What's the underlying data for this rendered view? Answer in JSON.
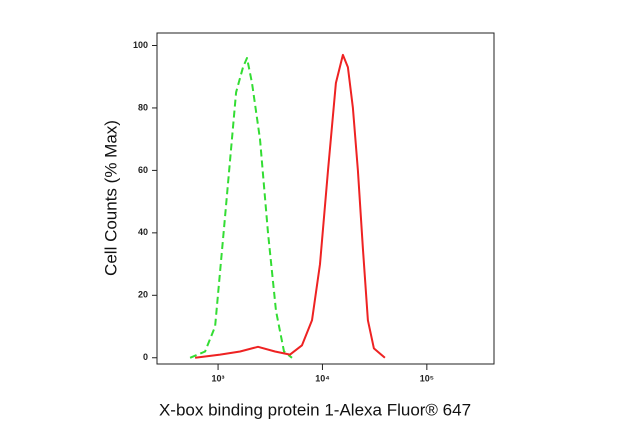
{
  "chart_data": {
    "type": "line",
    "xlabel": "X-box binding protein 1-Alexa Fluor® 647",
    "ylabel": "Cell Counts (% Max)",
    "xscale": "log",
    "xlim": [
      260,
      440000
    ],
    "ylim": [
      -2,
      104
    ],
    "xticks": [
      {
        "value": 1000,
        "label": "10³"
      },
      {
        "value": 10000,
        "label": "10⁴"
      },
      {
        "value": 100000,
        "label": "10⁵"
      }
    ],
    "yticks": [
      0,
      20,
      40,
      60,
      80,
      100
    ],
    "grid": false,
    "series": [
      {
        "color": "#33dd33",
        "dash": true,
        "x": [
          540,
          751,
          936,
          1166,
          1487,
          1734,
          1895,
          2115,
          2523,
          3009,
          3589,
          4284,
          5110
        ],
        "values": [
          0,
          2,
          10,
          45,
          85,
          93,
          96,
          88,
          70,
          40,
          15,
          2,
          0
        ]
      },
      {
        "color": "#ee2222",
        "dash": false,
        "x": [
          603,
          1045,
          1625,
          2415,
          3508,
          4887,
          6370,
          7943,
          9470,
          11290,
          13460,
          15700,
          17540,
          19590,
          21870,
          24430,
          27230,
          31100,
          39630
        ],
        "values": [
          0,
          1,
          2,
          3.5,
          2,
          1,
          4,
          12,
          30,
          60,
          88,
          97,
          93,
          80,
          60,
          35,
          12,
          3,
          0
        ]
      }
    ]
  }
}
